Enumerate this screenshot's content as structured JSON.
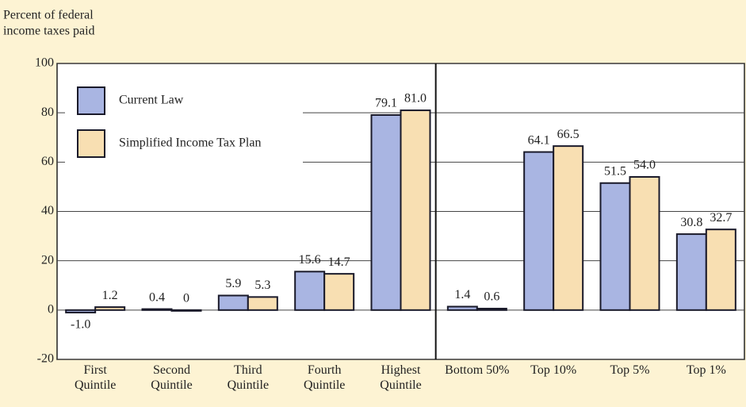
{
  "chart_data": {
    "type": "bar",
    "y_label": [
      "Percent of federal",
      "income taxes paid"
    ],
    "categories": [
      "First Quintile",
      "Second Quintile",
      "Third Quintile",
      "Fourth Quintile",
      "Highest Quintile",
      "Bottom 50%",
      "Top 10%",
      "Top 5%",
      "Top 1%"
    ],
    "series": [
      {
        "name": "Current Law",
        "color": "#a9b5e2",
        "values": [
          -1,
          0.4,
          5.9,
          15.6,
          79.1,
          1.4,
          64.1,
          51.5,
          30.8
        ],
        "value_labels": [
          "-1.0",
          "0.4",
          "5.9",
          "15.6",
          "79.1",
          "1.4",
          "64.1",
          "51.5",
          "30.8"
        ]
      },
      {
        "name": "Simplified Income Tax Plan",
        "color": "#f8dfb2",
        "values": [
          1.2,
          0,
          5.3,
          14.7,
          81,
          0.6,
          66.5,
          54,
          32.7
        ],
        "value_labels": [
          "1.2",
          "0",
          "5.3",
          "14.7",
          "81.0",
          "0.6",
          "66.5",
          "54.0",
          "32.7"
        ]
      }
    ],
    "ylim": [
      -20,
      100
    ],
    "yticks": [
      -20,
      0,
      20,
      40,
      60,
      80,
      100
    ],
    "grid": true,
    "legend": "top-left"
  }
}
